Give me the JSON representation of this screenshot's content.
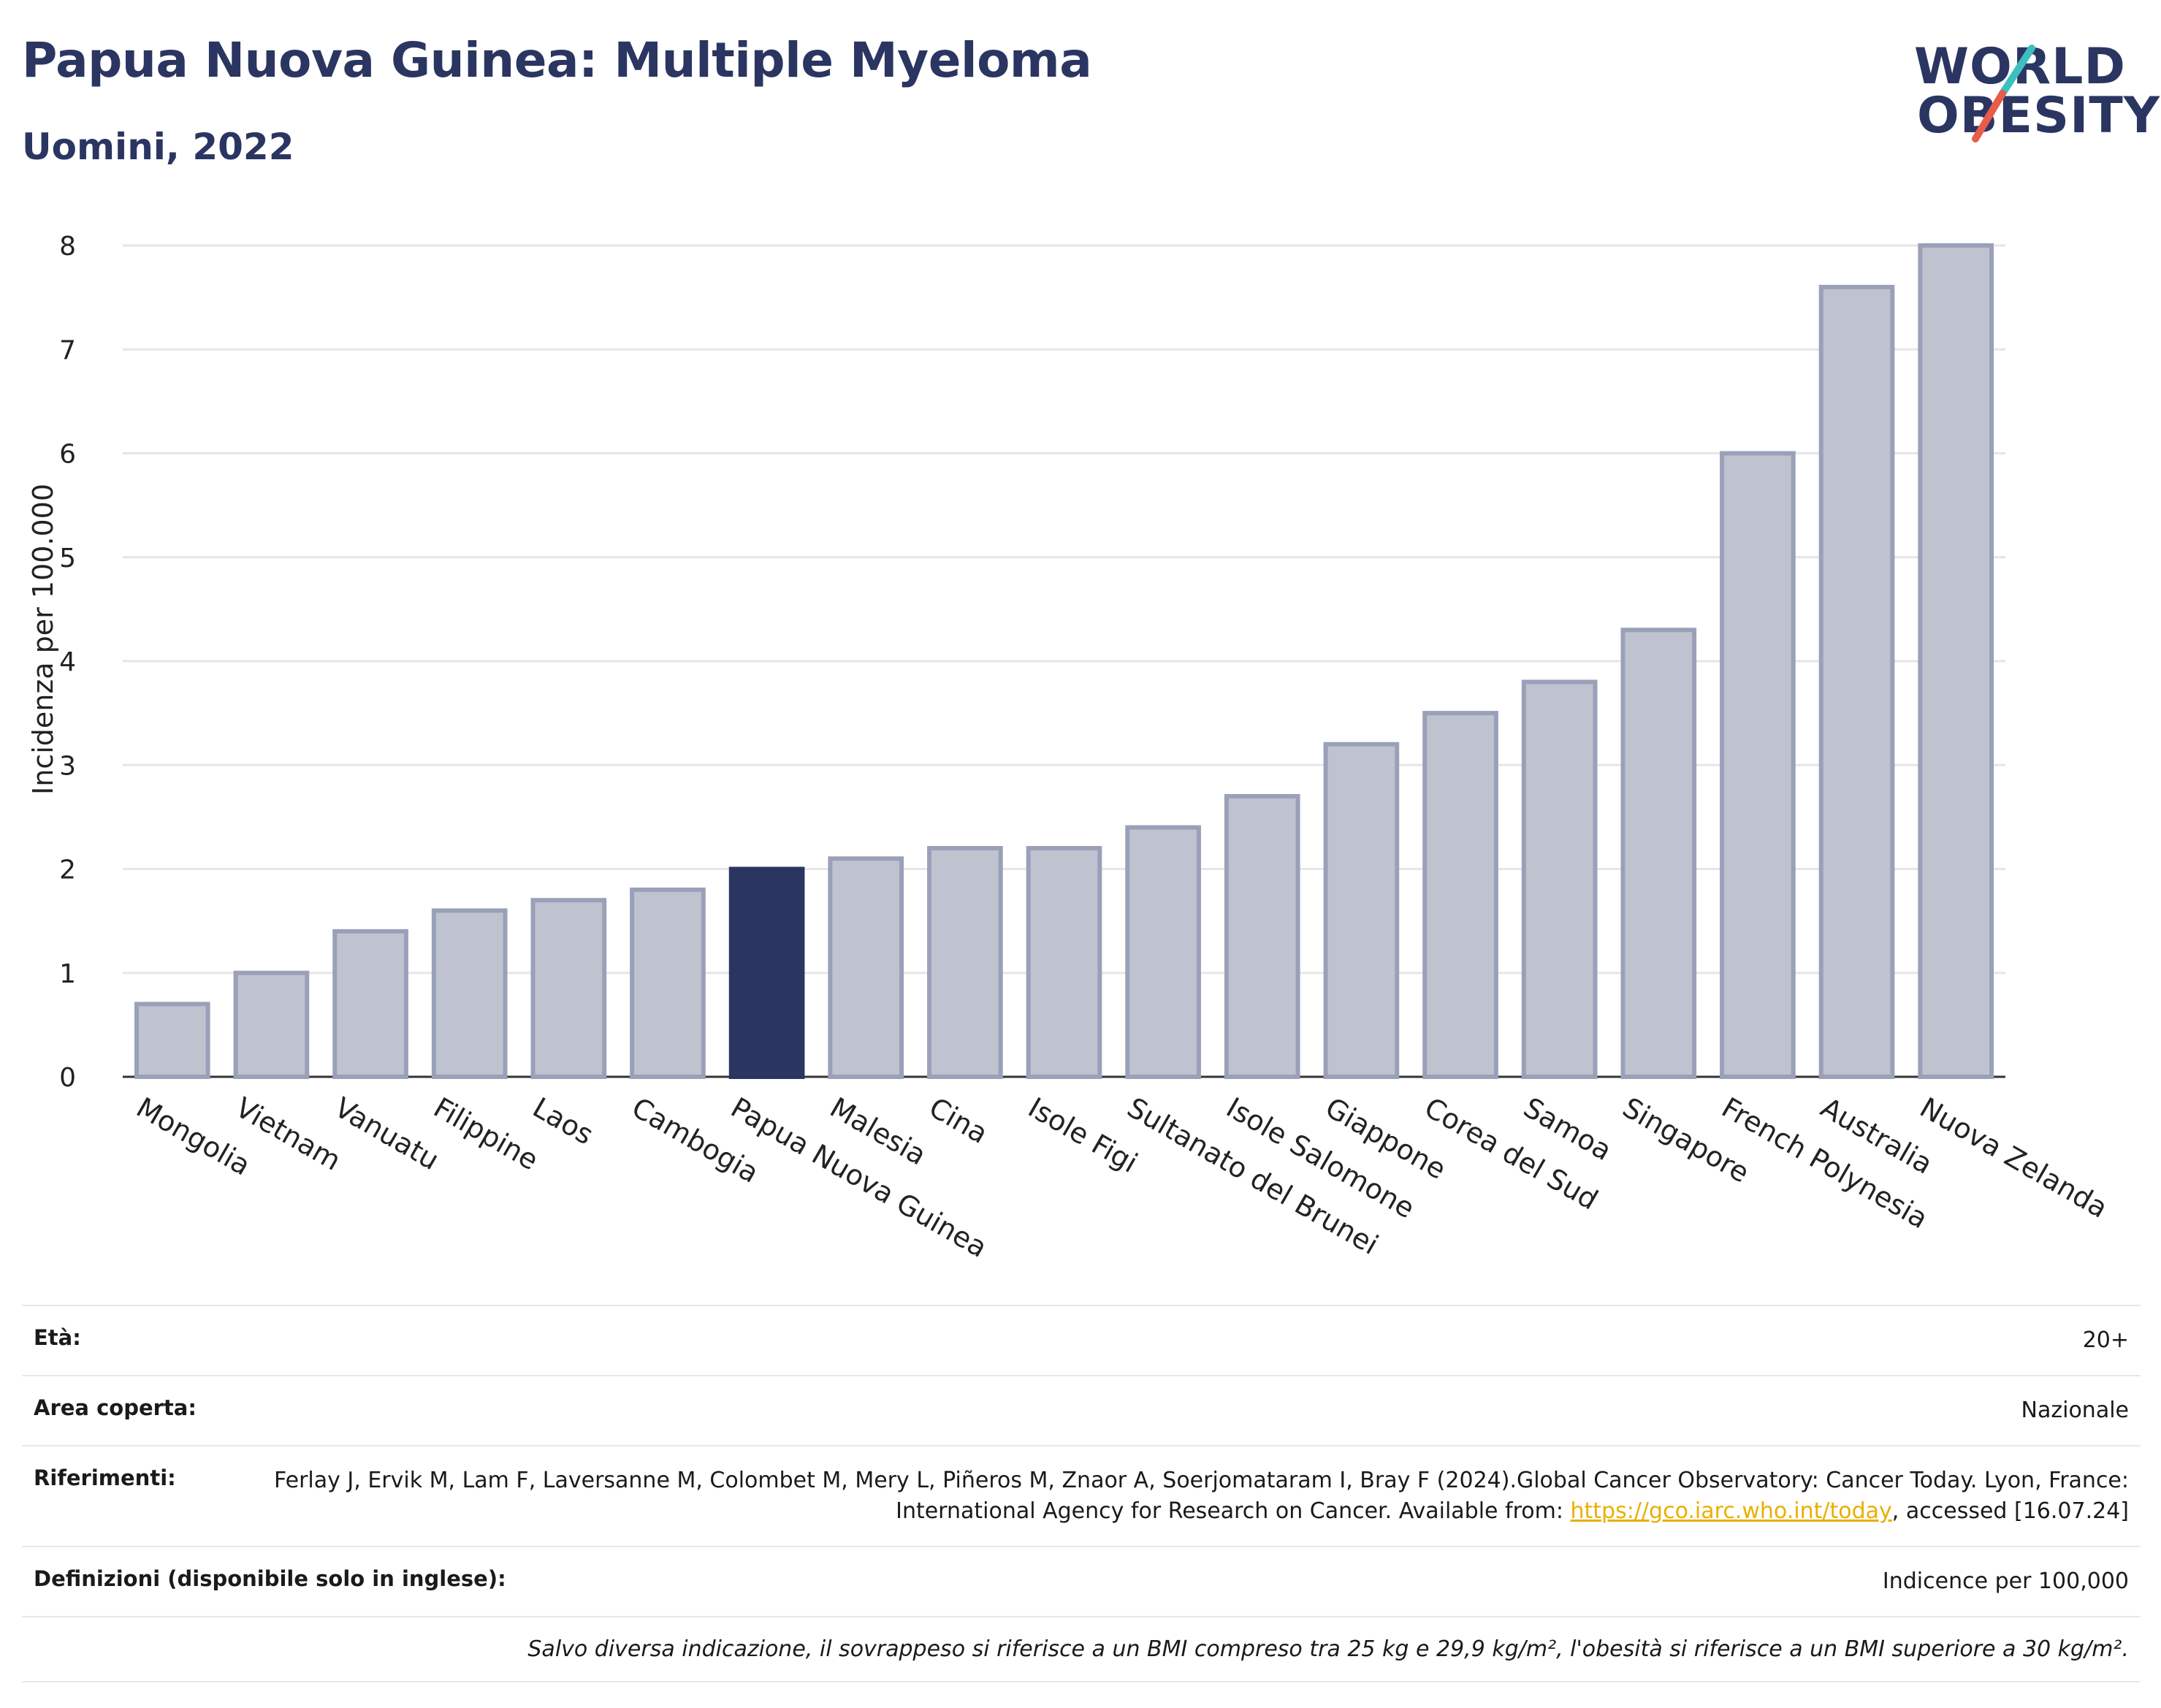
{
  "header": {
    "title": "Papua Nuova Guinea: Multiple Myeloma",
    "subtitle": "Uomini, 2022"
  },
  "logo": {
    "line1": "WORLD",
    "line2": "OBESITY",
    "slash_colors": [
      "#3dbfbf",
      "#e85c4a"
    ]
  },
  "colors": {
    "highlight": "#2b3561",
    "bar_fill": "#bfc3d0",
    "bar_stroke": "#9aa0b8",
    "grid": "#e6e6ea"
  },
  "chart_data": {
    "type": "bar",
    "title": "Papua Nuova Guinea: Multiple Myeloma",
    "subtitle": "Uomini, 2022",
    "xlabel": "",
    "ylabel": "Incidenza per 100.000",
    "ylim": [
      0,
      8
    ],
    "yticks": [
      "0",
      "1",
      "2",
      "3",
      "4",
      "5",
      "6",
      "7",
      "8"
    ],
    "grid": true,
    "highlight": "Papua Nuova Guinea",
    "categories": [
      "Mongolia",
      "Vietnam",
      "Vanuatu",
      "Filippine",
      "Laos",
      "Cambogia",
      "Papua Nuova Guinea",
      "Malesia",
      "Cina",
      "Isole Figi",
      "Sultanato del Brunei",
      "Isole Salomone",
      "Giappone",
      "Corea del Sud",
      "Samoa",
      "Singapore",
      "French Polynesia",
      "Australia",
      "Nuova Zelanda"
    ],
    "values": [
      0.7,
      1.0,
      1.4,
      1.6,
      1.7,
      1.8,
      2.0,
      2.1,
      2.2,
      2.2,
      2.4,
      2.7,
      3.2,
      3.5,
      3.8,
      4.3,
      6.0,
      7.6,
      8.0
    ]
  },
  "meta": {
    "rows": [
      {
        "label": "Età:",
        "value": "20+"
      },
      {
        "label": "Area coperta:",
        "value": "Nazionale"
      },
      {
        "label": "Riferimenti:",
        "value_pre": "Ferlay J, Ervik M, Lam F, Laversanne M, Colombet M, Mery L, Piñeros M, Znaor A, Soerjomataram I, Bray F (2024).Global Cancer Observatory: Cancer Today. Lyon, France: International Agency for Research on Cancer. Available from: ",
        "link": "https://gco.iarc.who.int/today",
        "value_post": ", accessed [16.07.24]"
      },
      {
        "label": "Definizioni (disponibile solo in inglese):",
        "value": "Indicence per 100,000"
      }
    ],
    "note": "Salvo diversa indicazione, il sovrappeso si riferisce a un BMI compreso tra 25 kg e 29,9 kg/m², l'obesità si riferisce a un BMI superiore a 30 kg/m²."
  }
}
